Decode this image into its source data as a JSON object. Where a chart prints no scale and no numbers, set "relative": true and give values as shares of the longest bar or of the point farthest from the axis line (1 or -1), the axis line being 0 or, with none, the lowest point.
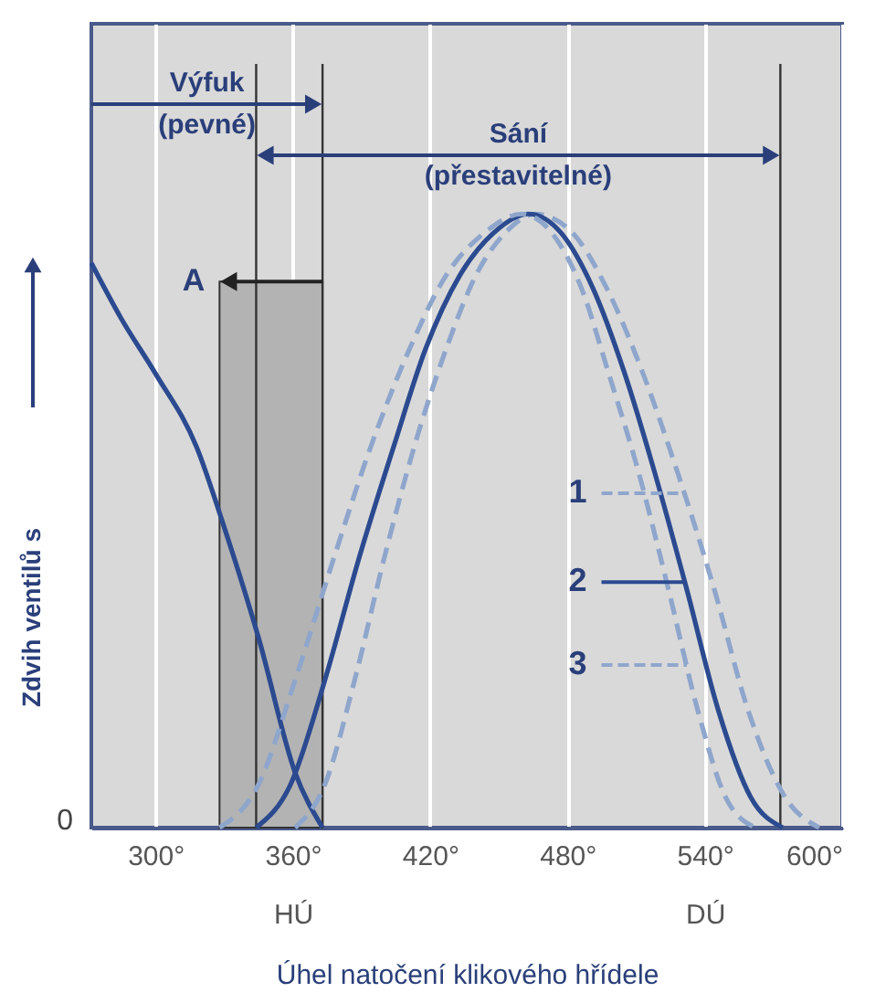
{
  "chart_data": {
    "type": "line",
    "relative": true,
    "xlabel": "Úhel natočení klikového hřídele",
    "ylabel": "Zdvih ventilů s",
    "xlim": [
      272,
      600
    ],
    "xticks": [
      {
        "value": 300,
        "label": "300°"
      },
      {
        "value": 360,
        "label": "360°\nHÚ"
      },
      {
        "value": 420,
        "label": "420°"
      },
      {
        "value": 480,
        "label": "480°"
      },
      {
        "value": 540,
        "label": "540°\nDÚ"
      },
      {
        "value": 600,
        "label": "600°"
      }
    ],
    "grid": "x",
    "legend": "center",
    "series": [
      {
        "color": "#2b4a8f",
        "line_style": "solid",
        "x": [
          272,
          285,
          300,
          318,
          330,
          345,
          361,
          373
        ],
        "values": [
          0.92,
          0.83,
          0.74,
          0.62,
          0.49,
          0.31,
          0.09,
          0
        ]
      },
      {
        "name": "1",
        "color": "#8fa6cc",
        "line_style": "dashed",
        "x": [
          361,
          374,
          387,
          400,
          413,
          427,
          440,
          453,
          466,
          482,
          497,
          513,
          528,
          544,
          559,
          575,
          590
        ],
        "values": [
          0,
          0.07,
          0.24,
          0.44,
          0.62,
          0.78,
          0.9,
          0.97,
          1,
          0.97,
          0.88,
          0.74,
          0.58,
          0.39,
          0.19,
          0.05,
          0
        ]
      },
      {
        "name": "2",
        "color": "#2b4a8f",
        "line_style": "solid",
        "x": [
          344,
          359,
          374,
          389,
          404,
          418,
          433,
          448,
          463,
          477,
          491,
          505,
          518,
          532,
          546,
          560,
          574
        ],
        "values": [
          0,
          0.07,
          0.24,
          0.44,
          0.62,
          0.78,
          0.9,
          0.97,
          1,
          0.97,
          0.88,
          0.74,
          0.58,
          0.39,
          0.19,
          0.05,
          0
        ]
      },
      {
        "name": "3",
        "color": "#8fa6cc",
        "line_style": "dashed",
        "x": [
          328,
          345,
          361,
          378,
          394,
          411,
          427,
          444,
          460,
          473,
          486,
          498,
          511,
          524,
          537,
          549,
          562
        ],
        "values": [
          0,
          0.07,
          0.24,
          0.44,
          0.62,
          0.78,
          0.9,
          0.97,
          1,
          0.97,
          0.88,
          0.74,
          0.58,
          0.39,
          0.19,
          0.05,
          0
        ]
      }
    ],
    "ref_lines": [
      {
        "axis": "x",
        "value": 373,
        "color": "#333333"
      },
      {
        "axis": "x",
        "value": 344,
        "color": "#333333"
      },
      {
        "axis": "x",
        "value": 573,
        "color": "#333333"
      }
    ],
    "bands": [
      {
        "axis": "x",
        "from": 328,
        "to": 373,
        "label": "A",
        "color": "#b3b3b3"
      }
    ],
    "annotations": [
      "Výfuk\n(pevné)",
      "Sání\n(přestavitelné)",
      "0"
    ]
  }
}
